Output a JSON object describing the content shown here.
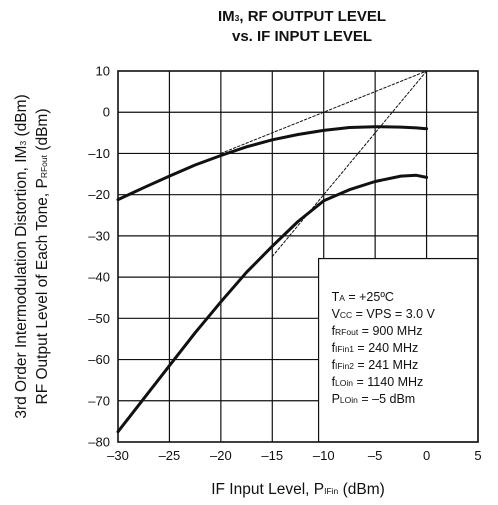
{
  "chart_data": {
    "type": "line",
    "title_lines": [
      {
        "main": "IM",
        "sub": "3",
        "rest": ", RF OUTPUT LEVEL"
      },
      {
        "main": "vs. IF INPUT LEVEL",
        "sub": "",
        "rest": ""
      }
    ],
    "xlabel": {
      "main": "IF Input Level, P",
      "sub": "IFin",
      "rest": " (dBm)"
    },
    "ylabel_lines": [
      {
        "main": "3rd Order Intermodulation Distortion, IM",
        "sub": "3",
        "rest": " (dBm)"
      },
      {
        "main": "RF Output Level of Each Tone, P",
        "sub": "RFout",
        "rest": " (dBm)"
      }
    ],
    "xlim": [
      -30,
      5
    ],
    "ylim": [
      -80,
      10
    ],
    "x_ticks": [
      -30,
      -25,
      -20,
      -15,
      -10,
      -5,
      0,
      5
    ],
    "x_tick_labels": [
      "–30",
      "–25",
      "–20",
      "–15",
      "–10",
      "–5",
      "0",
      "5"
    ],
    "y_ticks": [
      10,
      0,
      -10,
      -20,
      -30,
      -40,
      -50,
      -60,
      -70,
      -80
    ],
    "y_tick_labels": [
      "10",
      "0",
      "–10",
      "–20",
      "–30",
      "–40",
      "–50",
      "–60",
      "–70",
      "–80"
    ],
    "grid": true,
    "series": [
      {
        "x": [
          -30,
          -27.5,
          -25,
          -22.5,
          -20,
          -17.5,
          -15,
          -12.5,
          -10,
          -7.5,
          -5,
          -2.5,
          -1,
          0
        ],
        "y": [
          -21.2,
          -18.3,
          -15.5,
          -12.8,
          -10.5,
          -8.4,
          -6.7,
          -5.4,
          -4.4,
          -3.7,
          -3.5,
          -3.6,
          -3.8,
          -4.0
        ],
        "style": "solid"
      },
      {
        "x": [
          -30,
          -27.5,
          -25,
          -22.5,
          -20,
          -17.5,
          -15,
          -12.5,
          -10,
          -7.5,
          -5,
          -2.5,
          -1,
          0
        ],
        "y": [
          -77.5,
          -69.5,
          -61.5,
          -53.5,
          -46,
          -38.8,
          -32.5,
          -26.5,
          -21.5,
          -18.8,
          -16.8,
          -15.5,
          -15.3,
          -15.8
        ],
        "style": "solid"
      },
      {
        "x": [
          -20,
          0
        ],
        "y": [
          -10,
          10
        ],
        "style": "dashed"
      },
      {
        "x": [
          -15,
          0
        ],
        "y": [
          -35,
          10
        ],
        "style": "dashed"
      }
    ],
    "conditions_box": {
      "x_range": [
        -10.5,
        5
      ],
      "y_range": [
        -80,
        -35.5
      ],
      "lines": [
        {
          "main": "T",
          "sub": "A",
          "rest": " = +25ºC"
        },
        {
          "main": "V",
          "sub": "CC",
          "rest": " = VPS = 3.0 V"
        },
        {
          "main": "f",
          "sub": "RFout",
          "rest": "  = 900 MHz"
        },
        {
          "main": "f",
          "sub": "IFin1",
          "rest": " = 240 MHz"
        },
        {
          "main": "f",
          "sub": "IFin2",
          "rest": " = 241 MHz"
        },
        {
          "main": "f",
          "sub": "LOin",
          "rest": " = 1140 MHz"
        },
        {
          "main": "P",
          "sub": "LOin",
          "rest": " = –5 dBm"
        }
      ]
    }
  }
}
